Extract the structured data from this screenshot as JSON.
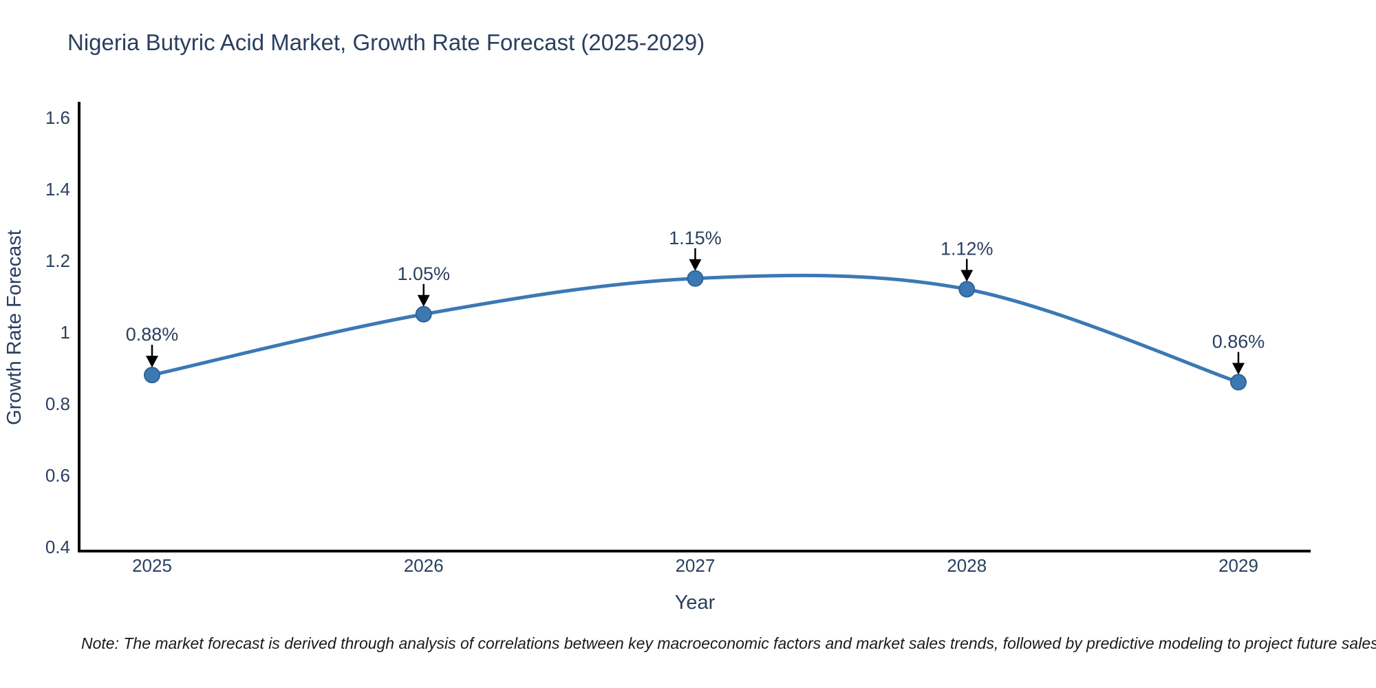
{
  "title": "Nigeria Butyric Acid Market, Growth Rate Forecast (2025-2029)",
  "note": "Note: The market forecast is derived through analysis of correlations between key macroeconomic factors and market sales trends, followed by predictive modeling to project future sales",
  "chart_data": {
    "type": "line",
    "title": "Nigeria Butyric Acid Market, Growth Rate Forecast (2025-2029)",
    "xlabel": "Year",
    "ylabel": "Growth Rate Forecast",
    "categories": [
      "2025",
      "2026",
      "2027",
      "2028",
      "2029"
    ],
    "x": [
      2025,
      2026,
      2027,
      2028,
      2029
    ],
    "values": [
      0.88,
      1.05,
      1.15,
      1.12,
      0.86
    ],
    "point_labels": [
      "0.88%",
      "1.05%",
      "1.15%",
      "1.12%",
      "0.86%"
    ],
    "series_name": "Growth Rate Forecast",
    "y_ticks": [
      0.4,
      0.6,
      0.8,
      1,
      1.2,
      1.4,
      1.6
    ],
    "y_tick_labels": [
      "0.4",
      "0.6",
      "0.8",
      "1",
      "1.2",
      "1.4",
      "1.6"
    ],
    "ylim": [
      0.388,
      1.64
    ],
    "line_shape": "spline",
    "grid": false,
    "legend_position": "none",
    "annotations_style": "value label with downward black arrow onto each marker",
    "colors": {
      "line": "#3c78b4",
      "marker_fill": "#3c78b4",
      "marker_edge": "#2f6394",
      "axis_line": "#000000",
      "label_text": "#2a3f5f",
      "arrow": "#000000",
      "note_text": "#1a1a1a",
      "background": "#ffffff"
    }
  }
}
